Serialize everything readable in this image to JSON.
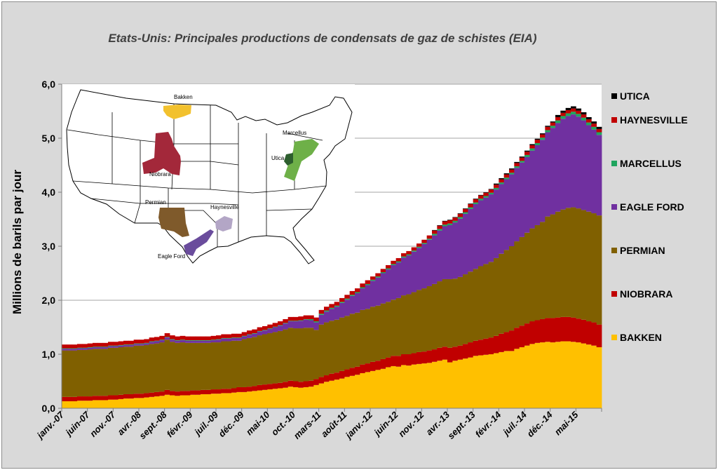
{
  "chart_data": {
    "type": "stacked-bar",
    "title": "Etats-Unis: Principales productions de condensats de gaz de schistes (EIA)",
    "ylabel": "Millions de barils par jour",
    "xlabel": "",
    "ylim": [
      0,
      6
    ],
    "y_ticks": [
      "0,0",
      "1,0",
      "2,0",
      "3,0",
      "4,0",
      "5,0",
      "6,0"
    ],
    "grid": true,
    "legend_position": "right",
    "x_start": "janv.-07",
    "x_end": "sept.-15",
    "x_tick_every_months": 5,
    "x_tick_labels": [
      "janv.-07",
      "juin-07",
      "nov.-07",
      "avr.-08",
      "sept.-08",
      "févr.-09",
      "juil.-09",
      "déc.-09",
      "mai-10",
      "oct.-10",
      "mars-11",
      "août-11",
      "janv.-12",
      "juin-12",
      "nov.-12",
      "avr.-13",
      "sept.-13",
      "févr.-14",
      "juil.-14",
      "déc.-14",
      "mai-15"
    ],
    "series": [
      {
        "name": "BAKKEN",
        "color": "#FFC000",
        "values": [
          0.13,
          0.13,
          0.13,
          0.14,
          0.14,
          0.14,
          0.15,
          0.15,
          0.15,
          0.16,
          0.16,
          0.17,
          0.18,
          0.18,
          0.19,
          0.19,
          0.2,
          0.21,
          0.22,
          0.23,
          0.25,
          0.24,
          0.23,
          0.24,
          0.24,
          0.25,
          0.25,
          0.26,
          0.26,
          0.27,
          0.27,
          0.28,
          0.28,
          0.29,
          0.3,
          0.3,
          0.31,
          0.32,
          0.33,
          0.34,
          0.35,
          0.36,
          0.37,
          0.38,
          0.4,
          0.39,
          0.38,
          0.39,
          0.4,
          0.43,
          0.46,
          0.49,
          0.51,
          0.53,
          0.55,
          0.58,
          0.6,
          0.62,
          0.65,
          0.67,
          0.69,
          0.71,
          0.73,
          0.76,
          0.78,
          0.77,
          0.8,
          0.79,
          0.81,
          0.82,
          0.83,
          0.84,
          0.86,
          0.88,
          0.9,
          0.85,
          0.88,
          0.9,
          0.92,
          0.94,
          0.97,
          0.98,
          0.99,
          1.0,
          1.02,
          1.04,
          1.06,
          1.06,
          1.1,
          1.13,
          1.16,
          1.19,
          1.21,
          1.22,
          1.23,
          1.22,
          1.23,
          1.24,
          1.24,
          1.23,
          1.22,
          1.2,
          1.18,
          1.16,
          1.13
        ]
      },
      {
        "name": "NIOBRARA",
        "color": "#C00000",
        "values": [
          0.08,
          0.08,
          0.08,
          0.08,
          0.08,
          0.08,
          0.08,
          0.08,
          0.08,
          0.08,
          0.08,
          0.08,
          0.08,
          0.08,
          0.08,
          0.08,
          0.08,
          0.08,
          0.08,
          0.08,
          0.09,
          0.08,
          0.08,
          0.08,
          0.08,
          0.08,
          0.08,
          0.08,
          0.08,
          0.08,
          0.08,
          0.08,
          0.08,
          0.08,
          0.09,
          0.09,
          0.09,
          0.09,
          0.1,
          0.1,
          0.1,
          0.1,
          0.1,
          0.11,
          0.11,
          0.11,
          0.11,
          0.11,
          0.11,
          0.11,
          0.12,
          0.12,
          0.13,
          0.13,
          0.14,
          0.14,
          0.15,
          0.15,
          0.16,
          0.16,
          0.17,
          0.17,
          0.18,
          0.18,
          0.19,
          0.2,
          0.2,
          0.21,
          0.21,
          0.22,
          0.22,
          0.23,
          0.23,
          0.24,
          0.24,
          0.27,
          0.26,
          0.26,
          0.27,
          0.28,
          0.28,
          0.29,
          0.3,
          0.31,
          0.32,
          0.34,
          0.35,
          0.38,
          0.39,
          0.4,
          0.41,
          0.42,
          0.42,
          0.43,
          0.44,
          0.45,
          0.45,
          0.45,
          0.45,
          0.45,
          0.44,
          0.44,
          0.43,
          0.43,
          0.42
        ]
      },
      {
        "name": "PERMIAN",
        "color": "#806000",
        "values": [
          0.86,
          0.86,
          0.86,
          0.86,
          0.86,
          0.87,
          0.87,
          0.87,
          0.87,
          0.88,
          0.88,
          0.88,
          0.88,
          0.88,
          0.89,
          0.89,
          0.89,
          0.9,
          0.9,
          0.91,
          0.93,
          0.91,
          0.9,
          0.9,
          0.89,
          0.88,
          0.88,
          0.87,
          0.87,
          0.87,
          0.87,
          0.88,
          0.88,
          0.88,
          0.86,
          0.89,
          0.9,
          0.91,
          0.92,
          0.93,
          0.94,
          0.95,
          0.96,
          0.97,
          0.98,
          0.98,
          0.99,
          0.99,
          0.98,
          0.91,
          0.97,
          0.98,
          0.98,
          0.98,
          0.99,
          0.99,
          1.0,
          1.0,
          1.01,
          1.01,
          1.02,
          1.02,
          1.03,
          1.03,
          1.04,
          1.07,
          1.09,
          1.11,
          1.13,
          1.15,
          1.17,
          1.19,
          1.21,
          1.23,
          1.25,
          1.27,
          1.26,
          1.27,
          1.29,
          1.31,
          1.33,
          1.36,
          1.38,
          1.4,
          1.44,
          1.48,
          1.52,
          1.56,
          1.6,
          1.64,
          1.68,
          1.72,
          1.76,
          1.8,
          1.88,
          1.92,
          1.96,
          1.99,
          2.02,
          2.04,
          2.04,
          2.03,
          2.03,
          2.02,
          2.02
        ]
      },
      {
        "name": "EAGLE FORD",
        "color": "#7030A0",
        "values": [
          0.03,
          0.03,
          0.03,
          0.03,
          0.03,
          0.03,
          0.03,
          0.03,
          0.03,
          0.03,
          0.03,
          0.03,
          0.03,
          0.03,
          0.03,
          0.03,
          0.03,
          0.04,
          0.04,
          0.04,
          0.04,
          0.04,
          0.04,
          0.04,
          0.04,
          0.04,
          0.04,
          0.04,
          0.04,
          0.04,
          0.05,
          0.05,
          0.05,
          0.05,
          0.05,
          0.05,
          0.06,
          0.06,
          0.07,
          0.07,
          0.08,
          0.09,
          0.1,
          0.11,
          0.12,
          0.13,
          0.14,
          0.15,
          0.14,
          0.14,
          0.18,
          0.2,
          0.22,
          0.24,
          0.27,
          0.3,
          0.33,
          0.36,
          0.4,
          0.44,
          0.48,
          0.52,
          0.56,
          0.6,
          0.64,
          0.66,
          0.7,
          0.72,
          0.75,
          0.78,
          0.82,
          0.86,
          0.9,
          0.94,
          0.98,
          1.0,
          1.04,
          1.08,
          1.12,
          1.16,
          1.2,
          1.22,
          1.23,
          1.25,
          1.27,
          1.29,
          1.31,
          1.33,
          1.36,
          1.38,
          1.4,
          1.44,
          1.48,
          1.52,
          1.56,
          1.6,
          1.64,
          1.68,
          1.7,
          1.72,
          1.7,
          1.66,
          1.6,
          1.55,
          1.49
        ]
      },
      {
        "name": "MARCELLUS",
        "color": "#1FA55E",
        "values": [
          0.01,
          0.01,
          0.01,
          0.01,
          0.01,
          0.01,
          0.01,
          0.01,
          0.01,
          0.01,
          0.01,
          0.01,
          0.01,
          0.01,
          0.01,
          0.01,
          0.01,
          0.01,
          0.01,
          0.01,
          0.01,
          0.01,
          0.01,
          0.01,
          0.01,
          0.01,
          0.01,
          0.01,
          0.01,
          0.01,
          0.01,
          0.01,
          0.01,
          0.01,
          0.01,
          0.01,
          0.01,
          0.01,
          0.01,
          0.01,
          0.01,
          0.01,
          0.01,
          0.01,
          0.01,
          0.01,
          0.01,
          0.01,
          0.02,
          0.02,
          0.02,
          0.02,
          0.02,
          0.02,
          0.02,
          0.02,
          0.02,
          0.02,
          0.02,
          0.02,
          0.02,
          0.02,
          0.02,
          0.02,
          0.02,
          0.02,
          0.02,
          0.02,
          0.02,
          0.02,
          0.02,
          0.02,
          0.03,
          0.03,
          0.03,
          0.03,
          0.03,
          0.03,
          0.03,
          0.03,
          0.03,
          0.03,
          0.03,
          0.03,
          0.03,
          0.03,
          0.03,
          0.03,
          0.03,
          0.03,
          0.04,
          0.04,
          0.04,
          0.04,
          0.04,
          0.04,
          0.05,
          0.05,
          0.05,
          0.05,
          0.05,
          0.05,
          0.05,
          0.05,
          0.05
        ]
      },
      {
        "name": "HAYNESVILLE",
        "color": "#C00000",
        "values": [
          0.07,
          0.07,
          0.07,
          0.07,
          0.07,
          0.07,
          0.07,
          0.07,
          0.07,
          0.07,
          0.07,
          0.07,
          0.07,
          0.07,
          0.07,
          0.07,
          0.07,
          0.07,
          0.07,
          0.07,
          0.07,
          0.07,
          0.07,
          0.07,
          0.07,
          0.07,
          0.07,
          0.07,
          0.07,
          0.07,
          0.07,
          0.07,
          0.07,
          0.07,
          0.07,
          0.07,
          0.07,
          0.07,
          0.07,
          0.07,
          0.07,
          0.07,
          0.07,
          0.07,
          0.07,
          0.07,
          0.07,
          0.07,
          0.07,
          0.07,
          0.07,
          0.07,
          0.07,
          0.07,
          0.07,
          0.07,
          0.07,
          0.07,
          0.07,
          0.07,
          0.06,
          0.06,
          0.06,
          0.06,
          0.06,
          0.06,
          0.06,
          0.06,
          0.06,
          0.06,
          0.06,
          0.06,
          0.06,
          0.06,
          0.06,
          0.06,
          0.06,
          0.06,
          0.06,
          0.06,
          0.06,
          0.06,
          0.06,
          0.06,
          0.06,
          0.06,
          0.06,
          0.06,
          0.06,
          0.06,
          0.06,
          0.06,
          0.06,
          0.06,
          0.06,
          0.06,
          0.06,
          0.06,
          0.06,
          0.06,
          0.06,
          0.06,
          0.06,
          0.06,
          0.06
        ]
      },
      {
        "name": "UTICA",
        "color": "#000000",
        "values": [
          0,
          0,
          0,
          0,
          0,
          0,
          0,
          0,
          0,
          0,
          0,
          0,
          0,
          0,
          0,
          0,
          0,
          0,
          0,
          0,
          0,
          0,
          0,
          0,
          0,
          0,
          0,
          0,
          0,
          0,
          0,
          0,
          0,
          0,
          0,
          0,
          0,
          0,
          0,
          0,
          0,
          0,
          0,
          0,
          0,
          0,
          0,
          0,
          0,
          0,
          0,
          0,
          0,
          0,
          0,
          0,
          0,
          0,
          0,
          0,
          0,
          0,
          0,
          0,
          0,
          0,
          0,
          0,
          0,
          0,
          0,
          0,
          0.01,
          0.01,
          0.01,
          0.01,
          0.01,
          0.01,
          0.01,
          0.01,
          0.01,
          0.01,
          0.01,
          0.01,
          0.02,
          0.02,
          0.02,
          0.02,
          0.02,
          0.02,
          0.02,
          0.02,
          0.02,
          0.02,
          0.02,
          0.02,
          0.04,
          0.04,
          0.04,
          0.04,
          0.04,
          0.04,
          0.04,
          0.04,
          0.04
        ]
      }
    ],
    "legend_order": [
      "UTICA",
      "HAYNESVILLE",
      "MARCELLUS",
      "EAGLE FORD",
      "PERMIAN",
      "NIOBRARA",
      "BAKKEN"
    ]
  },
  "map_labels": {
    "bakken": "Bakken",
    "niobrara": "Niobrara",
    "permian": "Permian",
    "eagle_ford": "Eagle Ford",
    "haynesville": "Haynesville",
    "marcellus": "Marcellus",
    "utica": "Utica"
  }
}
